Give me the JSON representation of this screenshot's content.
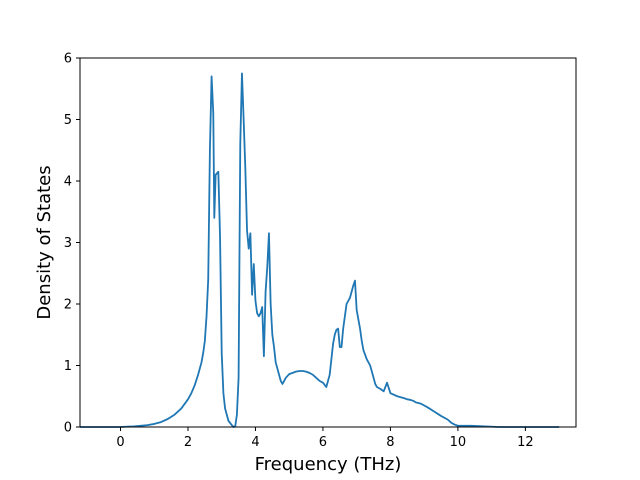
{
  "chart_data": {
    "type": "line",
    "title": "",
    "xlabel": "Frequency (THz)",
    "ylabel": "Density of States",
    "xlim": [
      -1.2,
      13.5
    ],
    "ylim": [
      0,
      6
    ],
    "xticks": [
      0,
      2,
      4,
      6,
      8,
      10,
      12
    ],
    "yticks": [
      0,
      1,
      2,
      3,
      4,
      5,
      6
    ],
    "xtick_labels": [
      "0",
      "2",
      "4",
      "6",
      "8",
      "10",
      "12"
    ],
    "ytick_labels": [
      "0",
      "1",
      "2",
      "3",
      "4",
      "5",
      "6"
    ],
    "grid": false,
    "legend": "none",
    "line_color": "#1f77b4",
    "series": [
      {
        "x": [
          -1.2,
          -0.5,
          0,
          0.4,
          0.8,
          1.0,
          1.2,
          1.4,
          1.6,
          1.8,
          2.0,
          2.1,
          2.2,
          2.3,
          2.4,
          2.45,
          2.5,
          2.55,
          2.6,
          2.65,
          2.7,
          2.75,
          2.78,
          2.82,
          2.9,
          2.95,
          3.0,
          3.05,
          3.1,
          3.2,
          3.3,
          3.35,
          3.4,
          3.45,
          3.5,
          3.55,
          3.6,
          3.65,
          3.7,
          3.75,
          3.8,
          3.85,
          3.9,
          3.95,
          4.0,
          4.05,
          4.1,
          4.15,
          4.2,
          4.25,
          4.3,
          4.35,
          4.4,
          4.45,
          4.5,
          4.55,
          4.6,
          4.65,
          4.7,
          4.75,
          4.8,
          4.85,
          4.9,
          4.95,
          5.0,
          5.1,
          5.2,
          5.3,
          5.4,
          5.5,
          5.6,
          5.7,
          5.8,
          5.9,
          6.0,
          6.1,
          6.2,
          6.3,
          6.35,
          6.4,
          6.45,
          6.5,
          6.55,
          6.6,
          6.7,
          6.8,
          6.9,
          6.95,
          7.0,
          7.05,
          7.1,
          7.15,
          7.2,
          7.3,
          7.4,
          7.45,
          7.5,
          7.55,
          7.6,
          7.7,
          7.8,
          7.9,
          8.0,
          8.2,
          8.4,
          8.5,
          8.6,
          8.65,
          8.7,
          8.75,
          8.9,
          9.1,
          9.3,
          9.5,
          9.7,
          9.8,
          9.9,
          10.0,
          10.4,
          10.8,
          11.2,
          11.6,
          11.8,
          12.0,
          12.5,
          13.0
        ],
        "y": [
          0.0,
          0.0,
          0.0,
          0.01,
          0.03,
          0.05,
          0.08,
          0.13,
          0.2,
          0.3,
          0.45,
          0.55,
          0.68,
          0.85,
          1.05,
          1.2,
          1.4,
          1.8,
          2.4,
          4.5,
          5.7,
          5.1,
          3.4,
          4.1,
          4.15,
          3.1,
          1.2,
          0.55,
          0.3,
          0.1,
          0.03,
          0.0,
          0.01,
          0.2,
          0.8,
          4.6,
          5.75,
          5.0,
          4.2,
          3.2,
          2.9,
          3.15,
          2.15,
          2.65,
          2.05,
          1.85,
          1.8,
          1.85,
          1.95,
          1.15,
          2.2,
          2.6,
          3.15,
          2.0,
          1.5,
          1.3,
          1.05,
          0.95,
          0.85,
          0.75,
          0.7,
          0.75,
          0.8,
          0.83,
          0.86,
          0.88,
          0.9,
          0.91,
          0.91,
          0.9,
          0.88,
          0.85,
          0.8,
          0.75,
          0.72,
          0.65,
          0.85,
          1.35,
          1.5,
          1.58,
          1.6,
          1.3,
          1.3,
          1.6,
          2.0,
          2.1,
          2.3,
          2.38,
          1.9,
          1.75,
          1.6,
          1.4,
          1.25,
          1.1,
          1.0,
          0.9,
          0.8,
          0.7,
          0.65,
          0.62,
          0.58,
          0.72,
          0.55,
          0.5,
          0.47,
          0.45,
          0.44,
          0.43,
          0.42,
          0.4,
          0.38,
          0.32,
          0.25,
          0.18,
          0.12,
          0.07,
          0.04,
          0.02,
          0.02,
          0.01,
          0.0,
          0.0,
          0.0,
          0.0,
          0.0,
          0.0
        ]
      }
    ]
  }
}
